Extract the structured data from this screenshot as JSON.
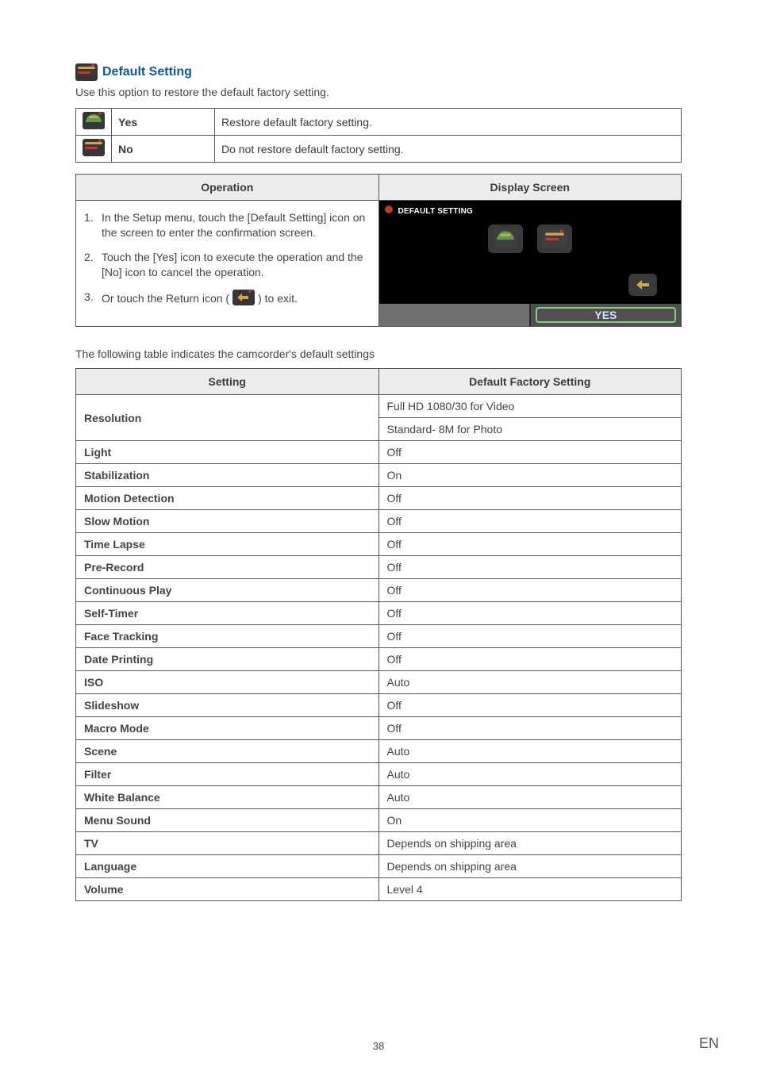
{
  "header": {
    "title": "Default Setting",
    "intro": "Use this option to restore the default factory setting."
  },
  "options": [
    {
      "name": "Yes",
      "desc": "Restore default factory setting."
    },
    {
      "name": "No",
      "desc": "Do not restore default factory setting."
    }
  ],
  "opDisp": {
    "col1": "Operation",
    "col2": "Display Screen",
    "steps": [
      "In the Setup menu, touch the [Default Setting] icon on the screen to enter the confirmation screen.",
      "Touch the [Yes] icon to execute the operation and the [No] icon to cancel the operation.",
      {
        "pre": "Or touch the Return icon (",
        "post": ") to exit."
      }
    ],
    "displayTitle": "DEFAULT SETTING",
    "yesLabel": "YES"
  },
  "subhead": "The following table indicates the camcorder's default settings",
  "settingsHeader": {
    "c1": "Setting",
    "c2": "Default Factory Setting"
  },
  "settings": [
    {
      "name": "Resolution",
      "values": [
        "Full HD 1080/30 for Video",
        "Standard- 8M for Photo"
      ]
    },
    {
      "name": "Light",
      "values": [
        "Off"
      ]
    },
    {
      "name": "Stabilization",
      "values": [
        "On"
      ]
    },
    {
      "name": "Motion Detection",
      "values": [
        "Off"
      ]
    },
    {
      "name": "Slow Motion",
      "values": [
        "Off"
      ]
    },
    {
      "name": "Time Lapse",
      "values": [
        "Off"
      ]
    },
    {
      "name": "Pre-Record",
      "values": [
        "Off"
      ]
    },
    {
      "name": "Continuous Play",
      "values": [
        "Off"
      ]
    },
    {
      "name": "Self-Timer",
      "values": [
        "Off"
      ]
    },
    {
      "name": "Face Tracking",
      "values": [
        "Off"
      ]
    },
    {
      "name": "Date Printing",
      "values": [
        "Off"
      ]
    },
    {
      "name": "ISO",
      "values": [
        "Auto"
      ]
    },
    {
      "name": "Slideshow",
      "values": [
        "Off"
      ]
    },
    {
      "name": "Macro Mode",
      "values": [
        "Off"
      ]
    },
    {
      "name": "Scene",
      "values": [
        "Auto"
      ]
    },
    {
      "name": "Filter",
      "values": [
        "Auto"
      ]
    },
    {
      "name": "White Balance",
      "values": [
        "Auto"
      ]
    },
    {
      "name": "Menu Sound",
      "values": [
        "On"
      ]
    },
    {
      "name": "TV",
      "values": [
        "Depends on shipping area"
      ]
    },
    {
      "name": "Language",
      "values": [
        "Depends on shipping area"
      ]
    },
    {
      "name": "Volume",
      "values": [
        "Level 4"
      ]
    }
  ],
  "page": {
    "num": "38",
    "lang": "EN"
  },
  "icons": {
    "tool_bg": "#363636",
    "tool_stroke": "#cfa74a",
    "tool_red": "#c33",
    "tool_green": "#5aa048",
    "tool_blue_back": "#3b76a8",
    "header_dot": "#b53a2e"
  }
}
